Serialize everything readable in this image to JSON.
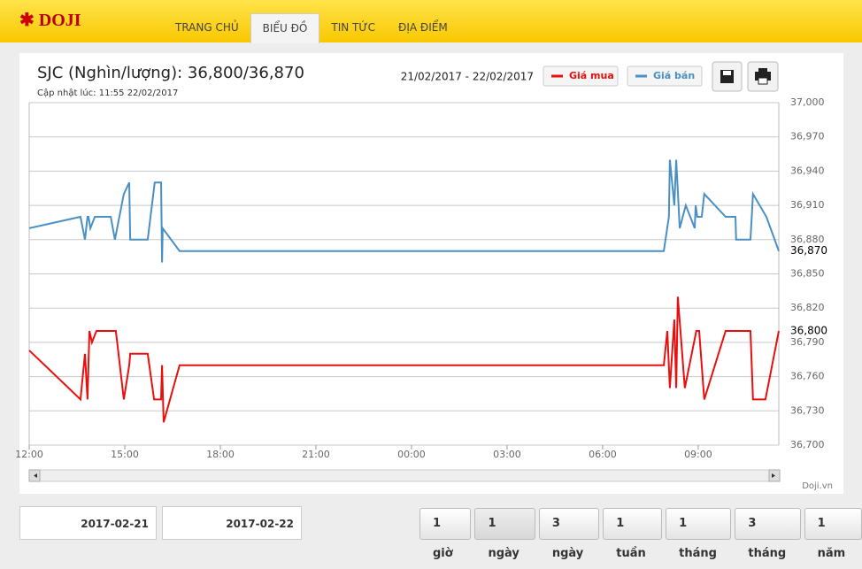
{
  "header": {
    "logo": "DOJI",
    "nav": [
      "TRANG CHỦ",
      "BIỂU ĐỒ",
      "TIN TỨC",
      "ĐỊA ĐIỂM"
    ]
  },
  "chart_data": {
    "type": "line",
    "title": "SJC (Nghìn/lượng): 36,800/36,870",
    "subtitle": "Cập nhật lúc: 11:55 22/02/2017",
    "date_range": "21/02/2017 - 22/02/2017",
    "watermark": "Doji.vn",
    "xlim": [
      12,
      35.53
    ],
    "xticks": [
      {
        "value": 12,
        "label": "12:00"
      },
      {
        "value": 15,
        "label": "15:00"
      },
      {
        "value": 18,
        "label": "18:00"
      },
      {
        "value": 21,
        "label": "21:00"
      },
      {
        "value": 24,
        "label": "00:00"
      },
      {
        "value": 27,
        "label": "03:00"
      },
      {
        "value": 30,
        "label": "06:00"
      },
      {
        "value": 33,
        "label": "09:00"
      }
    ],
    "ylim": [
      36700,
      37000
    ],
    "yticks": [
      {
        "value": 36700,
        "label": "36,700"
      },
      {
        "value": 36730,
        "label": "36,730"
      },
      {
        "value": 36760,
        "label": "36,760"
      },
      {
        "value": 36790,
        "label": "36,790"
      },
      {
        "value": 36820,
        "label": "36,820"
      },
      {
        "value": 36850,
        "label": "36,850"
      },
      {
        "value": 36880,
        "label": "36,880"
      },
      {
        "value": 36910,
        "label": "36,910"
      },
      {
        "value": 36940,
        "label": "36,940"
      },
      {
        "value": 36970,
        "label": "36,970"
      },
      {
        "value": 37000,
        "label": "37,000"
      }
    ],
    "grid": true,
    "series": [
      {
        "name": "Giá mua",
        "color": "#e8100f",
        "last_label": "36,800",
        "x": [
          12,
          13.61,
          13.75,
          13.83,
          13.89,
          13.97,
          14.11,
          14.72,
          14.97,
          15.14,
          15.17,
          15.72,
          15.92,
          16.14,
          16.17,
          16.22,
          16.72,
          31.92,
          32.03,
          32.11,
          32.25,
          32.31,
          32.36,
          32.58,
          32.94,
          33.03,
          33.19,
          33.86,
          34.64,
          34.72,
          35.11,
          35.53
        ],
        "values": [
          36783,
          36740,
          36780,
          36740,
          36800,
          36790,
          36800,
          36800,
          36740,
          36770,
          36780,
          36780,
          36740,
          36740,
          36770,
          36720,
          36770,
          36770,
          36800,
          36750,
          36810,
          36750,
          36830,
          36750,
          36800,
          36800,
          36740,
          36800,
          36800,
          36740,
          36740,
          36800
        ]
      },
      {
        "name": "Giá bán",
        "color": "#4a90c2",
        "last_label": "36,870",
        "x": [
          12,
          13.61,
          13.75,
          13.83,
          13.86,
          13.92,
          14.06,
          14.56,
          14.69,
          14.97,
          15.14,
          15.17,
          15.72,
          15.94,
          16.14,
          16.17,
          16.19,
          16.72,
          31.92,
          32.08,
          32.11,
          32.25,
          32.31,
          32.42,
          32.61,
          32.89,
          32.92,
          32.97,
          33.11,
          33.19,
          33.86,
          34.17,
          34.19,
          34.64,
          34.72,
          35.14,
          35.53
        ],
        "values": [
          36890,
          36900,
          36880,
          36900,
          36900,
          36890,
          36900,
          36900,
          36880,
          36920,
          36930,
          36880,
          36880,
          36930,
          36930,
          36860,
          36890,
          36870,
          36870,
          36900,
          36950,
          36910,
          36950,
          36890,
          36910,
          36890,
          36910,
          36900,
          36900,
          36920,
          36900,
          36900,
          36880,
          36880,
          36920,
          36900,
          36870
        ]
      }
    ]
  },
  "controls": {
    "date_from": "2017-02-21",
    "date_to": "2017-02-22",
    "ranges": [
      "1 giờ",
      "1 ngày",
      "3 ngày",
      "1 tuần",
      "1 tháng",
      "3 tháng",
      "1 năm"
    ]
  }
}
